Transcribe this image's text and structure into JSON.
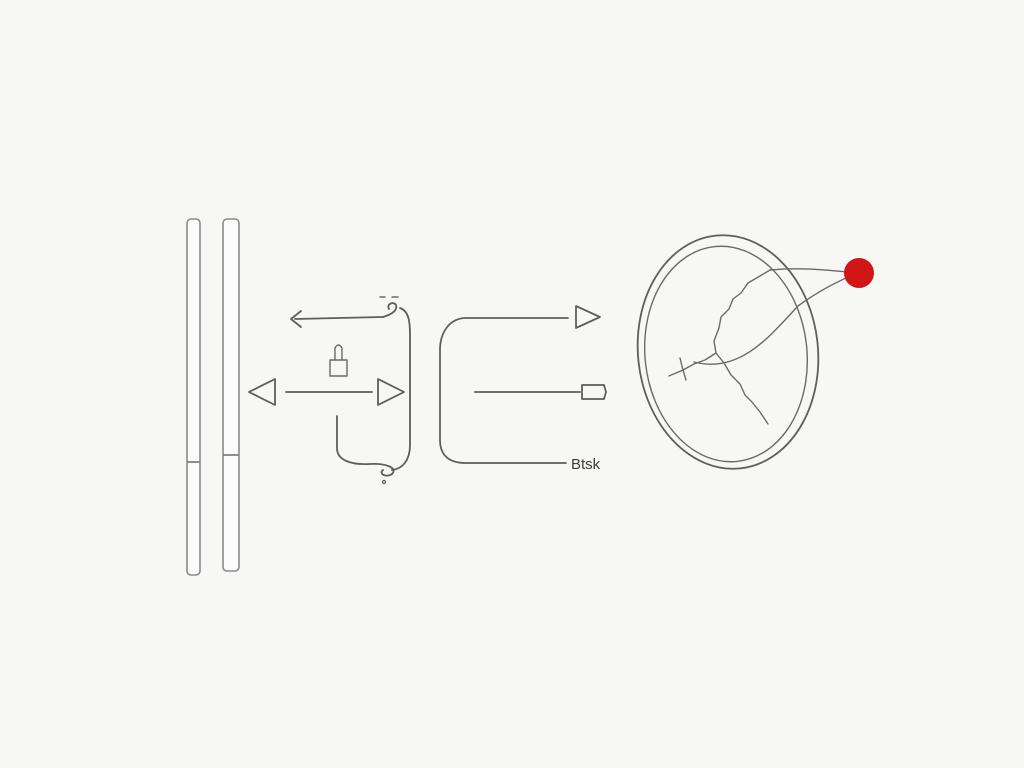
{
  "diagram": {
    "output_label": "Btsk",
    "colors": {
      "background": "#f7f7f6",
      "line": "#5e5e5e",
      "marker": "#d01616"
    },
    "icons": {
      "plug": "connector-icon",
      "marker": "red-dot"
    }
  }
}
